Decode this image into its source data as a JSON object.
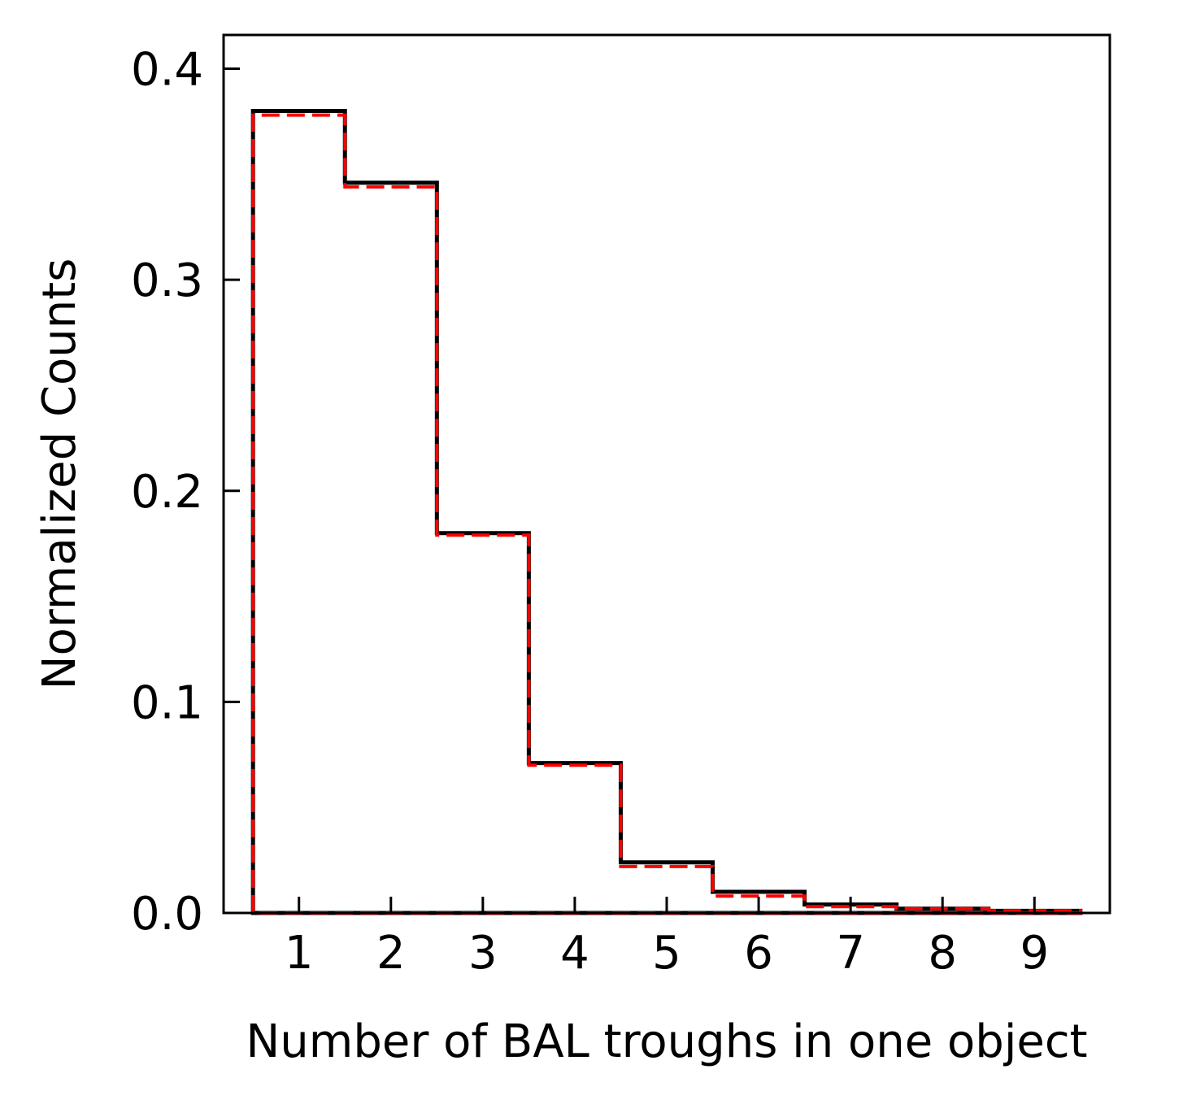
{
  "chart_data": {
    "type": "histogram-step",
    "xlabel": "Number of BAL troughs in one object",
    "ylabel": "Normalized Counts",
    "xlim": [
      0.18,
      9.82
    ],
    "ylim": [
      0.0,
      0.416
    ],
    "x_ticks": [
      1,
      2,
      3,
      4,
      5,
      6,
      7,
      8,
      9
    ],
    "y_ticks": [
      0.0,
      0.1,
      0.2,
      0.3,
      0.4
    ],
    "y_tick_labels": [
      "0.0",
      "0.1",
      "0.2",
      "0.3",
      "0.4"
    ],
    "bin_edges": [
      0.5,
      1.5,
      2.5,
      3.5,
      4.5,
      5.5,
      6.5,
      7.5,
      8.5,
      9.5
    ],
    "grid": false,
    "series": [
      {
        "color": "#000000",
        "linestyle": "solid",
        "values": [
          0.38,
          0.346,
          0.18,
          0.071,
          0.024,
          0.01,
          0.004,
          0.002,
          0.001
        ]
      },
      {
        "color": "#ff0000",
        "linestyle": "dashed",
        "values": [
          0.378,
          0.344,
          0.179,
          0.07,
          0.022,
          0.008,
          0.003,
          0.002,
          0.001
        ]
      }
    ]
  }
}
